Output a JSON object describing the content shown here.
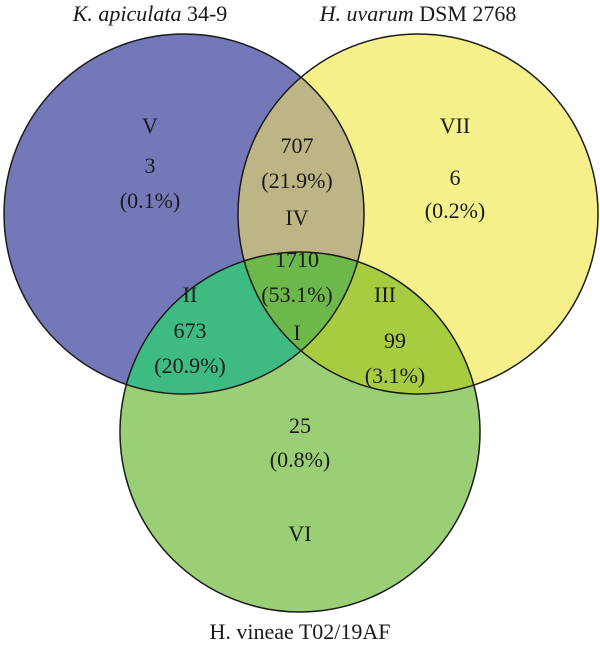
{
  "labels": {
    "top_left": {
      "italic": "K. apiculata",
      "plain": "34-9"
    },
    "top_right": {
      "italic": "H. uvarum",
      "plain": "DSM 2768"
    },
    "bottom": "H. vineae T02/19AF"
  },
  "regions": {
    "V": {
      "name": "V",
      "count": 3,
      "percent": "(0.1%)"
    },
    "IV": {
      "name": "IV",
      "count": 707,
      "percent": "(21.9%)"
    },
    "VII": {
      "name": "VII",
      "count": 6,
      "percent": "(0.2%)"
    },
    "I": {
      "name": "I",
      "count": 1710,
      "percent": "(53.1%)"
    },
    "II": {
      "name": "II",
      "count": 673,
      "percent": "(20.9%)"
    },
    "III": {
      "name": "III",
      "count": 99,
      "percent": "(3.1%)"
    },
    "VI": {
      "name": "VI",
      "count": 25,
      "percent": "(0.8%)"
    }
  }
}
